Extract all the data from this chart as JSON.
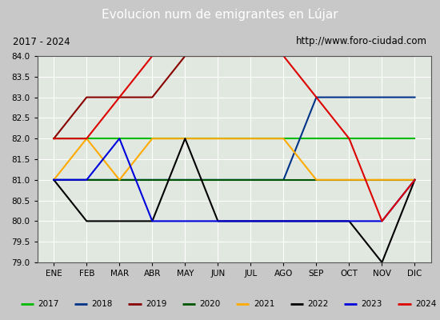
{
  "title": "Evolucion num de emigrantes en Lújar",
  "subtitle_left": "2017 - 2024",
  "subtitle_right": "http://www.foro-ciudad.com",
  "months": [
    "ENE",
    "FEB",
    "MAR",
    "ABR",
    "MAY",
    "JUN",
    "JUL",
    "AGO",
    "SEP",
    "OCT",
    "NOV",
    "DIC"
  ],
  "month_indices": [
    1,
    2,
    3,
    4,
    5,
    6,
    7,
    8,
    9,
    10,
    11,
    12
  ],
  "ylim": [
    79.0,
    84.0
  ],
  "ytick_step": 0.5,
  "series": {
    "2017": {
      "color": "#00bb00",
      "data_x": [
        1,
        2,
        3,
        4,
        5,
        6,
        7,
        8,
        9,
        10,
        11,
        12
      ],
      "data_y": [
        82.0,
        82.0,
        82.0,
        82.0,
        82.0,
        82.0,
        82.0,
        82.0,
        82.0,
        82.0,
        82.0,
        82.0
      ]
    },
    "2018": {
      "color": "#003388",
      "data_x": [
        1,
        2,
        3,
        4,
        5,
        6,
        7,
        8,
        9,
        10,
        11,
        12
      ],
      "data_y": [
        81.0,
        81.0,
        81.0,
        81.0,
        81.0,
        81.0,
        81.0,
        81.0,
        83.0,
        83.0,
        83.0,
        83.0
      ]
    },
    "2019": {
      "color": "#880000",
      "data_x": [
        1,
        2,
        3,
        4,
        5,
        6,
        7,
        8,
        9,
        10,
        11,
        12
      ],
      "data_y": [
        82.0,
        83.0,
        83.0,
        83.0,
        84.0,
        84.0,
        84.0,
        84.0,
        84.0,
        84.0,
        84.0,
        84.0
      ]
    },
    "2020": {
      "color": "#005500",
      "data_x": [
        1,
        2,
        3,
        4,
        5,
        6,
        7,
        8,
        9,
        10,
        11,
        12
      ],
      "data_y": [
        81.0,
        81.0,
        81.0,
        81.0,
        81.0,
        81.0,
        81.0,
        81.0,
        81.0,
        81.0,
        81.0,
        81.0
      ]
    },
    "2021": {
      "color": "#ffaa00",
      "data_x": [
        1,
        2,
        3,
        4,
        5,
        6,
        7,
        8,
        9,
        10,
        11,
        12
      ],
      "data_y": [
        81.0,
        82.0,
        81.0,
        82.0,
        82.0,
        82.0,
        82.0,
        82.0,
        81.0,
        81.0,
        81.0,
        81.0
      ]
    },
    "2022": {
      "color": "#000000",
      "data_x": [
        1,
        2,
        3,
        4,
        5,
        6,
        7,
        8,
        9,
        10,
        11,
        12
      ],
      "data_y": [
        81.0,
        80.0,
        80.0,
        80.0,
        82.0,
        80.0,
        80.0,
        80.0,
        80.0,
        80.0,
        79.0,
        81.0
      ]
    },
    "2023": {
      "color": "#0000dd",
      "data_x": [
        1,
        2,
        3,
        4,
        5,
        6,
        7,
        8,
        9,
        10,
        11,
        12
      ],
      "data_y": [
        81.0,
        81.0,
        82.0,
        80.0,
        80.0,
        80.0,
        80.0,
        80.0,
        80.0,
        80.0,
        80.0,
        81.0
      ]
    },
    "2024": {
      "color": "#dd0000",
      "data_x": [
        1,
        2,
        3,
        4,
        5,
        6,
        7,
        8,
        9,
        10,
        11,
        12
      ],
      "data_y": [
        82.0,
        82.0,
        83.0,
        84.0,
        84.0,
        84.0,
        84.0,
        84.0,
        83.0,
        82.0,
        80.0,
        81.0
      ]
    }
  },
  "bg_color": "#c8c8c8",
  "plot_bg_color": "#e0e8e0",
  "title_bg_color": "#4488cc",
  "title_color": "#ffffff",
  "grid_color": "#ffffff",
  "border_color": "#888888",
  "legend_order": [
    "2017",
    "2018",
    "2019",
    "2020",
    "2021",
    "2022",
    "2023",
    "2024"
  ],
  "fig_width": 5.5,
  "fig_height": 4.0,
  "dpi": 100
}
